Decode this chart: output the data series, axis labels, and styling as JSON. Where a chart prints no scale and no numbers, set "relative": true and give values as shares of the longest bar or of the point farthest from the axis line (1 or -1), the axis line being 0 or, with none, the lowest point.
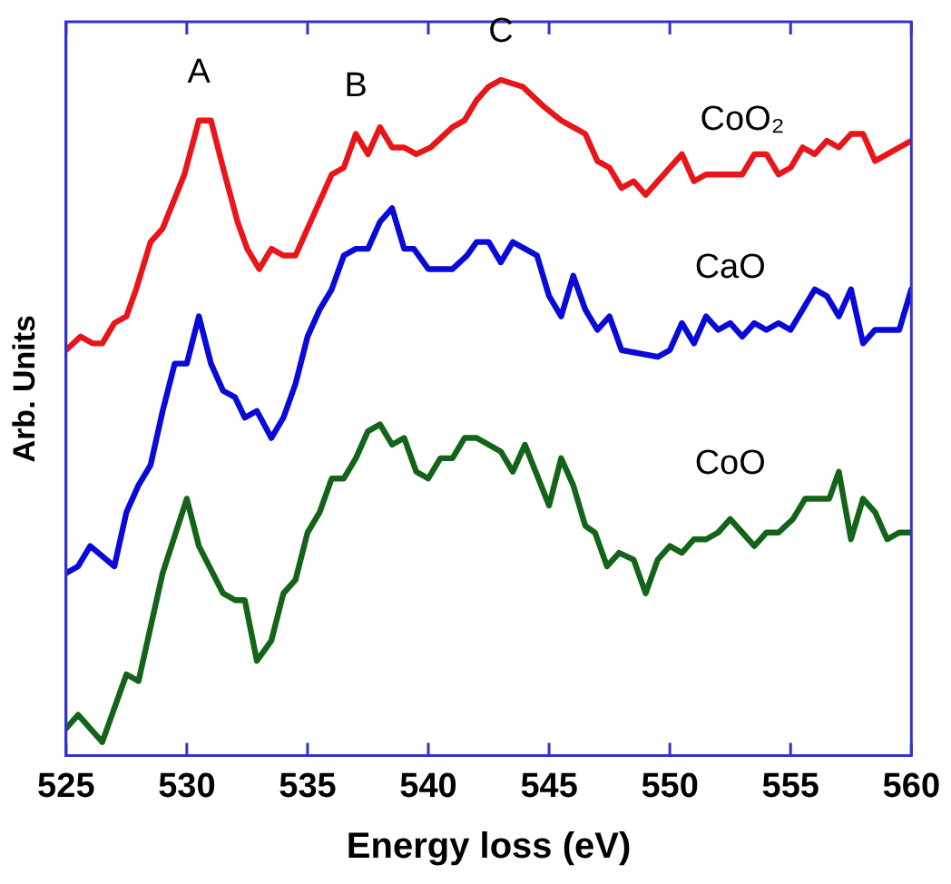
{
  "chart_data": {
    "type": "line",
    "xlabel": "Energy loss (eV)",
    "ylabel": "Arb. Units",
    "relative": true,
    "xlim": [
      525,
      560
    ],
    "xticks": [
      525,
      530,
      535,
      540,
      545,
      550,
      555,
      560
    ],
    "grid": false,
    "legend": false,
    "marker": "none",
    "line_style": "solid",
    "annotations": [
      {
        "text": "A",
        "x": 530.5,
        "y": 0.94
      },
      {
        "text": "B",
        "x": 537.0,
        "y": 0.92
      },
      {
        "text": "C",
        "x": 543.0,
        "y": 1.0
      }
    ],
    "series": [
      {
        "name": "CoO₂",
        "color": "#e8151a",
        "x": [
          525.0,
          525.6,
          526.1,
          526.5,
          527.0,
          527.5,
          527.9,
          528.5,
          529.0,
          529.9,
          530.5,
          531.0,
          531.5,
          532.1,
          532.5,
          533.0,
          533.5,
          534.0,
          534.5,
          535.0,
          535.5,
          536.0,
          536.5,
          537.0,
          537.5,
          538.0,
          538.5,
          539.0,
          539.5,
          540.1,
          541.0,
          541.5,
          542.0,
          542.5,
          543.0,
          543.9,
          544.8,
          545.5,
          546.5,
          547.0,
          547.5,
          548.0,
          548.5,
          549.0,
          550.5,
          551.0,
          551.5,
          552.0,
          553.0,
          553.5,
          554.0,
          554.5,
          555.0,
          555.5,
          556.0,
          556.5,
          557.0,
          557.5,
          558.0,
          558.5,
          560.0
        ],
        "values": [
          0.6,
          0.62,
          0.61,
          0.61,
          0.64,
          0.65,
          0.69,
          0.76,
          0.78,
          0.86,
          0.94,
          0.94,
          0.87,
          0.79,
          0.75,
          0.72,
          0.75,
          0.74,
          0.74,
          0.78,
          0.82,
          0.86,
          0.87,
          0.92,
          0.89,
          0.93,
          0.9,
          0.9,
          0.89,
          0.9,
          0.93,
          0.94,
          0.97,
          0.99,
          1.0,
          0.99,
          0.96,
          0.94,
          0.92,
          0.88,
          0.87,
          0.84,
          0.85,
          0.83,
          0.89,
          0.85,
          0.86,
          0.86,
          0.86,
          0.89,
          0.89,
          0.86,
          0.87,
          0.9,
          0.89,
          0.91,
          0.9,
          0.92,
          0.92,
          0.88,
          0.91
        ]
      },
      {
        "name": "CaO",
        "color": "#0a0ad8",
        "x": [
          525.0,
          525.5,
          526.0,
          527.0,
          527.5,
          528.0,
          528.5,
          529.0,
          529.5,
          530.0,
          530.5,
          531.0,
          531.5,
          532.0,
          532.4,
          532.9,
          533.5,
          534.0,
          534.5,
          535.0,
          535.5,
          536.0,
          536.5,
          537.0,
          537.5,
          538.0,
          538.5,
          539.0,
          539.4,
          540.0,
          540.5,
          541.0,
          541.6,
          542.0,
          542.5,
          543.0,
          543.5,
          544.0,
          544.5,
          545.0,
          545.5,
          546.0,
          546.5,
          547.0,
          547.5,
          548.0,
          549.5,
          550.0,
          550.5,
          551.0,
          551.5,
          552.0,
          552.5,
          553.0,
          553.5,
          554.0,
          554.5,
          555.0,
          555.5,
          556.0,
          556.5,
          557.0,
          557.5,
          558.0,
          558.5,
          559.5,
          560.0
        ],
        "values": [
          0.27,
          0.28,
          0.31,
          0.28,
          0.36,
          0.4,
          0.43,
          0.51,
          0.58,
          0.58,
          0.65,
          0.58,
          0.54,
          0.53,
          0.5,
          0.51,
          0.47,
          0.5,
          0.55,
          0.62,
          0.66,
          0.69,
          0.74,
          0.75,
          0.75,
          0.79,
          0.81,
          0.75,
          0.75,
          0.72,
          0.72,
          0.72,
          0.74,
          0.76,
          0.76,
          0.73,
          0.76,
          0.75,
          0.74,
          0.68,
          0.65,
          0.71,
          0.66,
          0.63,
          0.65,
          0.6,
          0.59,
          0.6,
          0.64,
          0.61,
          0.65,
          0.63,
          0.64,
          0.62,
          0.64,
          0.63,
          0.64,
          0.63,
          0.66,
          0.69,
          0.68,
          0.65,
          0.69,
          0.61,
          0.63,
          0.63,
          0.69
        ]
      },
      {
        "name": "CoO",
        "color": "#136419",
        "x": [
          525.0,
          525.5,
          526.5,
          527.5,
          528.0,
          529.0,
          530.0,
          530.5,
          531.5,
          532.0,
          532.4,
          532.9,
          533.5,
          534.0,
          534.5,
          535.0,
          535.5,
          536.0,
          536.5,
          537.0,
          537.5,
          538.0,
          538.5,
          539.0,
          539.5,
          540.0,
          540.5,
          541.0,
          541.5,
          542.0,
          542.5,
          543.0,
          543.5,
          544.0,
          545.0,
          545.5,
          546.0,
          546.5,
          546.9,
          547.4,
          547.9,
          548.5,
          549.0,
          549.5,
          550.0,
          550.5,
          551.0,
          551.5,
          552.0,
          552.5,
          553.0,
          553.5,
          554.0,
          554.5,
          555.1,
          555.6,
          556.1,
          556.6,
          557.0,
          557.5,
          558.0,
          558.5,
          559.0,
          559.5,
          560.0
        ],
        "values": [
          0.04,
          0.06,
          0.02,
          0.12,
          0.11,
          0.27,
          0.38,
          0.31,
          0.24,
          0.23,
          0.23,
          0.14,
          0.17,
          0.24,
          0.26,
          0.33,
          0.36,
          0.41,
          0.41,
          0.44,
          0.48,
          0.49,
          0.46,
          0.47,
          0.42,
          0.41,
          0.44,
          0.44,
          0.47,
          0.47,
          0.46,
          0.45,
          0.42,
          0.46,
          0.37,
          0.44,
          0.4,
          0.34,
          0.33,
          0.28,
          0.3,
          0.29,
          0.24,
          0.29,
          0.31,
          0.3,
          0.32,
          0.32,
          0.33,
          0.35,
          0.33,
          0.31,
          0.33,
          0.33,
          0.35,
          0.38,
          0.38,
          0.38,
          0.42,
          0.32,
          0.38,
          0.36,
          0.32,
          0.33,
          0.33
        ]
      }
    ]
  }
}
